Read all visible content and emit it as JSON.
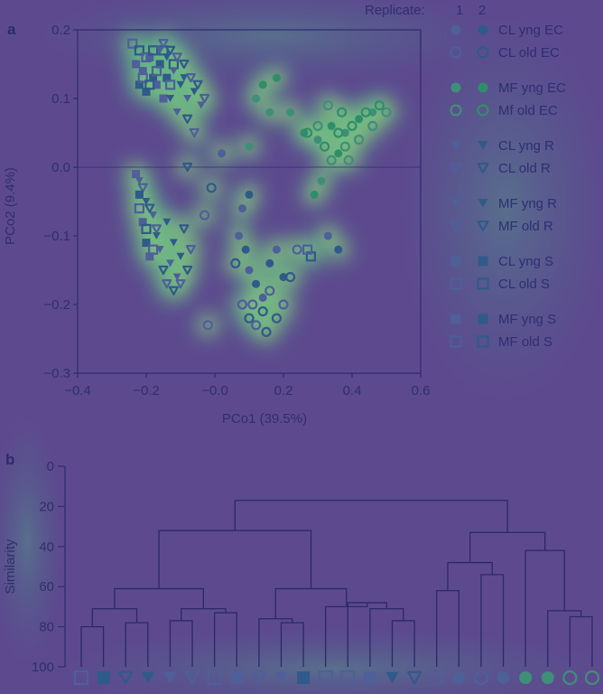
{
  "colors": {
    "background": "#5d4a8e",
    "axis": "#2e2b6e",
    "rep1_fill": "#4e5f9a",
    "rep2_fill": "#2f5a8a",
    "heat_low": "#3a8e8f",
    "heat_mid": "#4fc48a",
    "heat_high": "#e6e65a",
    "dendro_line": "#2b2966"
  },
  "panel_a": {
    "letter": "a",
    "legend_header": "Replicate:",
    "replicate_labels": [
      "1",
      "2"
    ],
    "legend": [
      {
        "label": "CL yng EC",
        "marker": "circle-filled",
        "group": "CL yng EC"
      },
      {
        "label": "CL old EC",
        "marker": "circle-open",
        "group": "CL old EC"
      },
      {
        "label": "MF yng EC",
        "marker": "circle-filled-green",
        "group": "MF yng EC"
      },
      {
        "label": "Mf old EC",
        "marker": "circle-open-green",
        "group": "MF old EC"
      },
      {
        "label": "CL yng R",
        "marker": "triangle-filled",
        "group": "CL yng R"
      },
      {
        "label": "CL old R",
        "marker": "triangle-open",
        "group": "CL old R"
      },
      {
        "label": "MF yng R",
        "marker": "triangle-filled",
        "group": "MF yng R"
      },
      {
        "label": "MF old R",
        "marker": "triangle-open",
        "group": "MF old R"
      },
      {
        "label": "CL yng S",
        "marker": "square-filled",
        "group": "CL yng S"
      },
      {
        "label": "CL old S",
        "marker": "square-open",
        "group": "CL old S"
      },
      {
        "label": "MF yng S",
        "marker": "square-filled",
        "group": "MF yng S"
      },
      {
        "label": "MF old S",
        "marker": "square-open",
        "group": "MF old S"
      }
    ]
  },
  "panel_b": {
    "letter": "b"
  },
  "chart_data": [
    {
      "type": "scatter",
      "xlabel": "PCo1 (39.5%)",
      "ylabel": "PCo2 (9.4%)",
      "xlim": [
        -0.4,
        0.6
      ],
      "ylim": [
        -0.3,
        0.2
      ],
      "xticks": [
        "−0.4",
        "−0.2",
        "−0.0",
        "0.2",
        "0.4",
        "0.6"
      ],
      "xtick_values": [
        -0.4,
        -0.2,
        0.0,
        0.2,
        0.4,
        0.6
      ],
      "yticks": [
        "0.2",
        "0.1",
        "0.0",
        "−0.1",
        "−0.2",
        "−0.3"
      ],
      "ytick_values": [
        0.2,
        0.1,
        0.0,
        -0.1,
        -0.2,
        -0.3
      ],
      "zero_line": 0.0,
      "series": [
        {
          "name": "CL yng S",
          "marker": "square-filled",
          "points": [
            [
              -0.23,
              0.15
            ],
            [
              -0.22,
              0.12
            ],
            [
              -0.21,
              0.14
            ],
            [
              -0.2,
              0.11
            ],
            [
              -0.19,
              0.16
            ],
            [
              -0.18,
              0.13
            ],
            [
              -0.17,
              0.12
            ],
            [
              -0.16,
              0.15
            ],
            [
              -0.15,
              0.1
            ],
            [
              -0.14,
              0.13
            ]
          ]
        },
        {
          "name": "CL old S",
          "marker": "square-open",
          "points": [
            [
              -0.24,
              0.18
            ],
            [
              -0.22,
              0.17
            ],
            [
              -0.2,
              0.16
            ],
            [
              -0.18,
              0.17
            ],
            [
              -0.17,
              0.14
            ],
            [
              -0.15,
              0.17
            ],
            [
              -0.13,
              0.12
            ],
            [
              -0.12,
              0.15
            ],
            [
              -0.21,
              0.13
            ],
            [
              -0.19,
              0.12
            ]
          ]
        },
        {
          "name": "CL yng R",
          "marker": "triangle-filled",
          "points": [
            [
              -0.16,
              0.17
            ],
            [
              -0.14,
              0.16
            ],
            [
              -0.12,
              0.14
            ],
            [
              -0.1,
              0.12
            ],
            [
              -0.08,
              0.1
            ],
            [
              -0.06,
              0.11
            ],
            [
              -0.04,
              0.09
            ],
            [
              -0.13,
              0.1
            ],
            [
              -0.11,
              0.08
            ],
            [
              -0.09,
              0.13
            ]
          ]
        },
        {
          "name": "CL old R",
          "marker": "triangle-open",
          "points": [
            [
              -0.15,
              0.18
            ],
            [
              -0.13,
              0.17
            ],
            [
              -0.11,
              0.16
            ],
            [
              -0.09,
              0.15
            ],
            [
              -0.07,
              0.13
            ],
            [
              -0.05,
              0.12
            ],
            [
              -0.03,
              0.1
            ],
            [
              -0.08,
              0.07
            ],
            [
              -0.06,
              0.05
            ],
            [
              -0.08,
              0.0
            ]
          ]
        },
        {
          "name": "MF yng R",
          "marker": "triangle-filled",
          "points": [
            [
              -0.22,
              -0.02
            ],
            [
              -0.2,
              -0.05
            ],
            [
              -0.18,
              -0.07
            ],
            [
              -0.17,
              -0.1
            ],
            [
              -0.16,
              -0.12
            ],
            [
              -0.14,
              -0.08
            ],
            [
              -0.13,
              -0.14
            ],
            [
              -0.12,
              -0.11
            ],
            [
              -0.11,
              -0.16
            ],
            [
              -0.1,
              -0.13
            ]
          ]
        },
        {
          "name": "MF old R",
          "marker": "triangle-open",
          "points": [
            [
              -0.21,
              -0.03
            ],
            [
              -0.19,
              -0.06
            ],
            [
              -0.17,
              -0.09
            ],
            [
              -0.15,
              -0.15
            ],
            [
              -0.14,
              -0.17
            ],
            [
              -0.12,
              -0.18
            ],
            [
              -0.1,
              -0.17
            ],
            [
              -0.08,
              -0.15
            ],
            [
              -0.07,
              -0.12
            ],
            [
              -0.09,
              -0.09
            ]
          ]
        },
        {
          "name": "MF yng S",
          "marker": "square-filled",
          "points": [
            [
              -0.23,
              -0.01
            ],
            [
              -0.22,
              -0.04
            ],
            [
              -0.21,
              -0.08
            ],
            [
              -0.2,
              -0.11
            ],
            [
              -0.19,
              -0.13
            ]
          ]
        },
        {
          "name": "MF old S",
          "marker": "square-open",
          "points": [
            [
              -0.22,
              -0.06
            ],
            [
              -0.2,
              -0.09
            ],
            [
              -0.18,
              -0.12
            ],
            [
              0.28,
              -0.13
            ],
            [
              0.27,
              -0.12
            ]
          ]
        },
        {
          "name": "CL yng EC",
          "marker": "circle-filled",
          "points": [
            [
              0.07,
              -0.1
            ],
            [
              0.09,
              -0.12
            ],
            [
              0.1,
              -0.15
            ],
            [
              0.12,
              -0.17
            ],
            [
              0.14,
              -0.19
            ],
            [
              0.16,
              -0.14
            ],
            [
              0.18,
              -0.12
            ],
            [
              0.2,
              -0.16
            ],
            [
              0.08,
              -0.06
            ],
            [
              0.1,
              -0.04
            ],
            [
              0.02,
              0.02
            ],
            [
              0.36,
              -0.12
            ],
            [
              0.33,
              -0.1
            ]
          ]
        },
        {
          "name": "CL old EC",
          "marker": "circle-open",
          "points": [
            [
              0.08,
              -0.2
            ],
            [
              0.1,
              -0.22
            ],
            [
              0.12,
              -0.23
            ],
            [
              0.14,
              -0.21
            ],
            [
              0.16,
              -0.18
            ],
            [
              0.18,
              -0.22
            ],
            [
              0.2,
              -0.2
            ],
            [
              0.22,
              -0.16
            ],
            [
              0.24,
              -0.12
            ],
            [
              0.06,
              -0.14
            ],
            [
              -0.02,
              -0.23
            ],
            [
              -0.01,
              -0.03
            ],
            [
              -0.03,
              -0.07
            ],
            [
              0.15,
              -0.24
            ],
            [
              0.11,
              -0.2
            ]
          ]
        },
        {
          "name": "MF yng EC",
          "marker": "circle-filled-green",
          "points": [
            [
              0.12,
              0.1
            ],
            [
              0.14,
              0.12
            ],
            [
              0.16,
              0.08
            ],
            [
              0.18,
              0.13
            ],
            [
              0.22,
              0.08
            ],
            [
              0.26,
              0.05
            ],
            [
              0.3,
              0.04
            ],
            [
              0.34,
              0.06
            ],
            [
              0.38,
              0.05
            ],
            [
              0.42,
              0.07
            ],
            [
              0.46,
              0.08
            ],
            [
              0.36,
              0.02
            ],
            [
              0.31,
              -0.02
            ],
            [
              0.29,
              -0.04
            ],
            [
              0.1,
              0.03
            ]
          ]
        },
        {
          "name": "MF old EC",
          "marker": "circle-open-green",
          "points": [
            [
              0.3,
              0.06
            ],
            [
              0.32,
              0.03
            ],
            [
              0.34,
              0.01
            ],
            [
              0.36,
              0.05
            ],
            [
              0.38,
              0.03
            ],
            [
              0.4,
              0.06
            ],
            [
              0.42,
              0.04
            ],
            [
              0.44,
              0.08
            ],
            [
              0.46,
              0.06
            ],
            [
              0.48,
              0.09
            ],
            [
              0.5,
              0.08
            ],
            [
              0.37,
              0.08
            ],
            [
              0.33,
              0.09
            ],
            [
              0.27,
              0.05
            ],
            [
              0.39,
              0.01
            ]
          ]
        }
      ]
    },
    {
      "type": "dendrogram",
      "ylabel": "Similarity",
      "ylim": [
        0,
        100
      ],
      "yticks": [
        "0",
        "20",
        "40",
        "60",
        "80",
        "100"
      ],
      "ytick_values": [
        0,
        20,
        40,
        60,
        80,
        100
      ],
      "leaves": [
        "MF old S",
        "MF yng S",
        "MF old R",
        "MF yng R",
        "CL yng R",
        "CL old R",
        "CL old S",
        "CL yng S",
        "CL old R",
        "CL yng R",
        "MF yng S",
        "MF old S",
        "CL old S",
        "CL yng S",
        "MF yng R",
        "MF old R",
        "CL old EC",
        "CL yng EC",
        "CL old EC",
        "CL yng EC",
        "MF yng EC",
        "MF yng EC",
        "MF old EC",
        "MF old EC"
      ],
      "merges": [
        {
          "a": "L0",
          "b": "L1",
          "height": 80
        },
        {
          "a": "L2",
          "b": "L3",
          "height": 78
        },
        {
          "a": "L4",
          "b": "L5",
          "height": 77
        },
        {
          "a": "L6",
          "b": "L7",
          "height": 73
        },
        {
          "a": "M2",
          "b": "M3",
          "height": 71
        },
        {
          "a": "M0",
          "b": "M1",
          "height": 71
        },
        {
          "a": "M5",
          "b": "M4",
          "height": 61
        },
        {
          "a": "L9",
          "b": "L10",
          "height": 78
        },
        {
          "a": "L8",
          "b": "M7",
          "height": 76
        },
        {
          "a": "L14",
          "b": "L15",
          "height": 77
        },
        {
          "a": "L13",
          "b": "M9",
          "height": 71
        },
        {
          "a": "L12",
          "b": "M10",
          "height": 68
        },
        {
          "a": "L11",
          "b": "M11",
          "height": 70
        },
        {
          "a": "M8",
          "b": "M12",
          "height": 61
        },
        {
          "a": "M6",
          "b": "M13",
          "height": 32
        },
        {
          "a": "L16",
          "b": "L17",
          "height": 62
        },
        {
          "a": "L18",
          "b": "L19",
          "height": 54
        },
        {
          "a": "M15",
          "b": "M16",
          "height": 48
        },
        {
          "a": "L22",
          "b": "L23",
          "height": 75
        },
        {
          "a": "L21",
          "b": "M18",
          "height": 72
        },
        {
          "a": "L20",
          "b": "M19",
          "height": 42
        },
        {
          "a": "M17",
          "b": "M20",
          "height": 33
        },
        {
          "a": "M14",
          "b": "M21",
          "height": 17
        }
      ]
    }
  ]
}
